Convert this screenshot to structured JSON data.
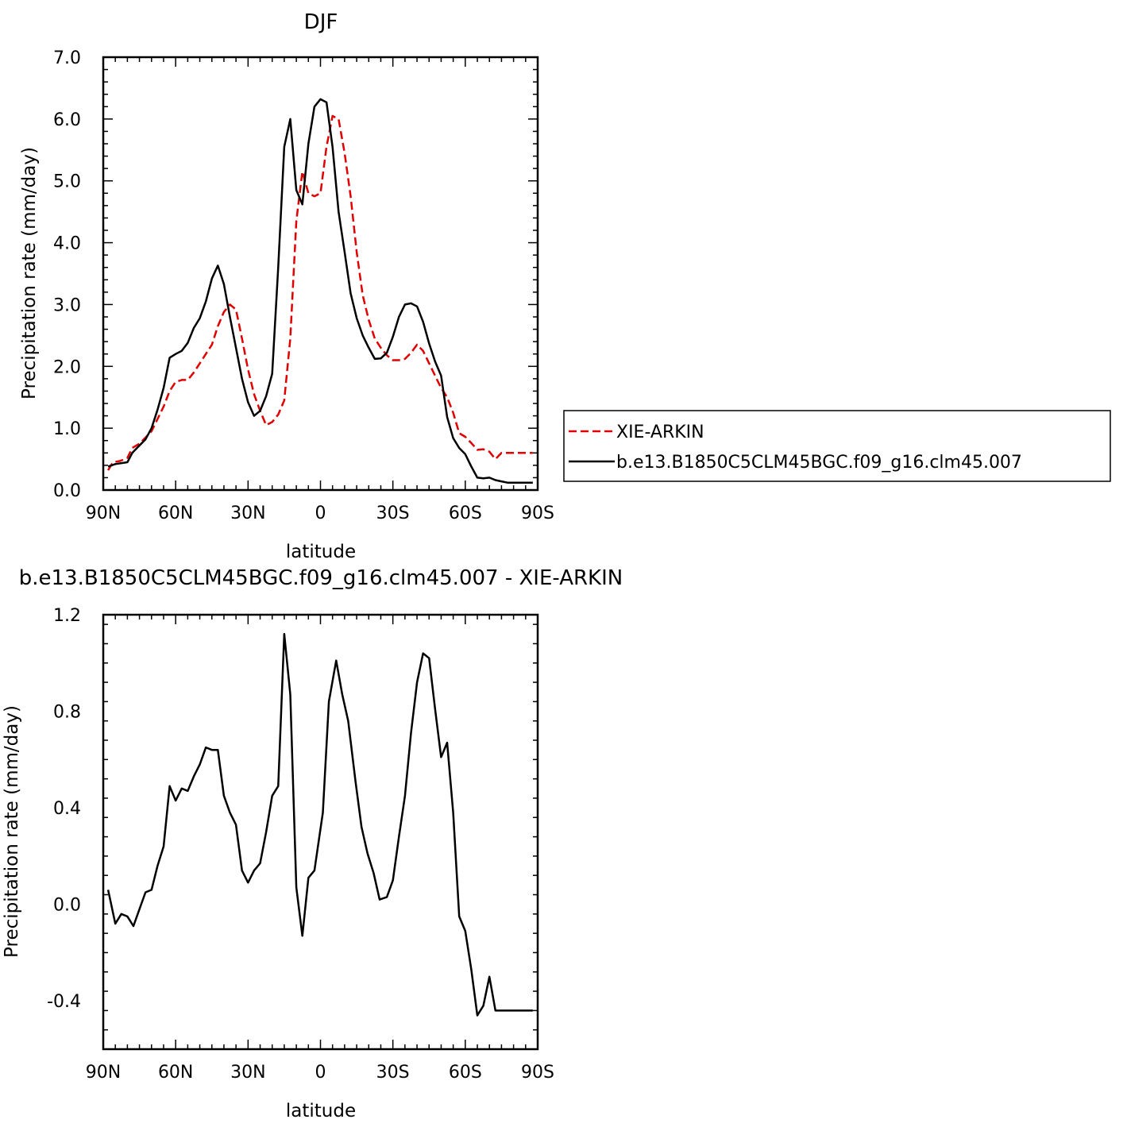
{
  "chart_data": [
    {
      "type": "line",
      "title": "DJF",
      "xlabel": "latitude",
      "ylabel": "Precipitation rate (mm/day)",
      "xlim": [
        -90,
        90
      ],
      "ylim": [
        0,
        7
      ],
      "x_direction": "north-to-south (90N on left, 90S on right)",
      "x_ticks": [
        -90,
        -60,
        -30,
        0,
        30,
        60,
        90
      ],
      "x_tick_labels": [
        "90N",
        "60N",
        "30N",
        "0",
        "30S",
        "60S",
        "90S"
      ],
      "y_ticks": [
        0,
        1,
        2,
        3,
        4,
        5,
        6,
        7
      ],
      "y_tick_labels": [
        "0.0",
        "1.0",
        "2.0",
        "3.0",
        "4.0",
        "5.0",
        "6.0",
        "7.0"
      ],
      "grid": false,
      "legend_position": "right, outside the plot",
      "series": [
        {
          "name": "XIE-ARKIN",
          "color": "#e00000",
          "dash": "dashed",
          "x": [
            -88,
            -86,
            -83,
            -80,
            -78,
            -75,
            -73,
            -70,
            -67.5,
            -65,
            -62.5,
            -60,
            -57.5,
            -55,
            -52.5,
            -50,
            -47.5,
            -45,
            -42.5,
            -40,
            -37.5,
            -35,
            -32.5,
            -30,
            -27.5,
            -25,
            -22.5,
            -20,
            -17.5,
            -15,
            -12.5,
            -10,
            -7.5,
            -5,
            -2.5,
            0,
            2.5,
            5,
            7.5,
            10,
            12.5,
            15,
            17.5,
            20,
            22.5,
            25,
            27.5,
            30,
            32.5,
            35,
            37.5,
            40,
            42.5,
            45,
            47.5,
            50,
            52.5,
            55,
            57.5,
            60,
            62.5,
            65,
            67.5,
            70,
            72.5,
            75,
            77.5,
            80,
            82.5,
            85,
            87.5,
            88
          ],
          "y": [
            0.32,
            0.45,
            0.47,
            0.52,
            0.68,
            0.75,
            0.83,
            0.95,
            1.15,
            1.35,
            1.6,
            1.75,
            1.78,
            1.78,
            1.9,
            2.05,
            2.2,
            2.35,
            2.65,
            2.88,
            3.0,
            2.92,
            2.45,
            1.95,
            1.55,
            1.28,
            1.05,
            1.1,
            1.22,
            1.45,
            2.45,
            4.35,
            5.15,
            4.8,
            4.75,
            4.8,
            5.55,
            6.05,
            6.0,
            5.45,
            4.75,
            3.85,
            3.15,
            2.75,
            2.45,
            2.3,
            2.18,
            2.1,
            2.1,
            2.12,
            2.22,
            2.35,
            2.25,
            2.05,
            1.85,
            1.65,
            1.5,
            1.25,
            0.92,
            0.86,
            0.76,
            0.65,
            0.66,
            0.62,
            0.5,
            0.6,
            0.6,
            0.6,
            0.6,
            0.6,
            0.6,
            0.6
          ]
        },
        {
          "name": "b.e13.B1850C5CLM45BGC.f09_g16.clm45.007",
          "color": "#000000",
          "dash": "solid",
          "x": [
            -88,
            -85,
            -80,
            -78,
            -75,
            -72.5,
            -70,
            -67.5,
            -65,
            -62.5,
            -60,
            -57.5,
            -55,
            -52.5,
            -50,
            -47.5,
            -45,
            -42.5,
            -40,
            -37.5,
            -35,
            -32.5,
            -30,
            -27.5,
            -25,
            -22.5,
            -20,
            -17.5,
            -15,
            -12.5,
            -10,
            -7.5,
            -5,
            -2.5,
            0,
            2.5,
            5,
            7.5,
            10,
            12.5,
            15,
            17.5,
            20,
            22.5,
            25,
            27.5,
            30,
            32.5,
            35,
            37.5,
            40,
            42.5,
            45,
            47.5,
            50,
            52.5,
            55,
            57.5,
            60,
            62.5,
            65,
            67.5,
            70,
            72.5,
            75,
            77.5,
            80,
            82.5,
            85,
            87.5,
            88
          ],
          "y": [
            0.38,
            0.42,
            0.45,
            0.6,
            0.72,
            0.82,
            1.0,
            1.3,
            1.65,
            2.14,
            2.2,
            2.25,
            2.38,
            2.62,
            2.78,
            3.05,
            3.42,
            3.63,
            3.33,
            2.8,
            2.3,
            1.8,
            1.42,
            1.2,
            1.28,
            1.52,
            1.88,
            3.6,
            5.55,
            6.0,
            4.85,
            4.62,
            5.6,
            6.2,
            6.32,
            6.27,
            5.55,
            4.5,
            3.85,
            3.18,
            2.78,
            2.5,
            2.3,
            2.12,
            2.13,
            2.22,
            2.48,
            2.8,
            3.0,
            3.02,
            2.97,
            2.72,
            2.37,
            2.08,
            1.85,
            1.18,
            0.84,
            0.68,
            0.58,
            0.38,
            0.2,
            0.19,
            0.2,
            0.16,
            0.14,
            0.12,
            0.12,
            0.12,
            0.12,
            0.12,
            0.12
          ]
        }
      ]
    },
    {
      "type": "line",
      "title": "b.e13.B1850C5CLM45BGC.f09_g16.clm45.007 - XIE-ARKIN",
      "xlabel": "latitude",
      "ylabel": "Precipitation rate (mm/day)",
      "xlim": [
        -90,
        90
      ],
      "ylim": [
        -0.6,
        1.2
      ],
      "x_direction": "north-to-south (90N on left, 90S on right)",
      "x_ticks": [
        -90,
        -60,
        -30,
        0,
        30,
        60,
        90
      ],
      "x_tick_labels": [
        "90N",
        "60N",
        "30N",
        "0",
        "30S",
        "60S",
        "90S"
      ],
      "y_ticks": [
        -0.4,
        0.0,
        0.4,
        0.8,
        1.2
      ],
      "y_tick_labels": [
        "-0.4",
        "0.0",
        "0.4",
        "0.8",
        "1.2"
      ],
      "grid": false,
      "series": [
        {
          "color": "#000000",
          "dash": "solid",
          "x": [
            -88,
            -85,
            -82.5,
            -80,
            -77.5,
            -75,
            -72.5,
            -70,
            -67.5,
            -65,
            -62.5,
            -60,
            -57.5,
            -55,
            -52.5,
            -50,
            -47.5,
            -45,
            -42.5,
            -40,
            -37.5,
            -35,
            -32.5,
            -30,
            -27.5,
            -25,
            -22.5,
            -20,
            -17.5,
            -15,
            -12.5,
            -10,
            -7.5,
            -5,
            -2.5,
            1,
            3.5,
            6.5,
            9,
            11.5,
            14.5,
            17,
            19.5,
            22,
            24.5,
            27.5,
            30,
            32.5,
            35,
            37.5,
            40,
            42.5,
            45,
            47.5,
            50,
            52.5,
            55,
            57.5,
            60,
            62.5,
            65,
            67.5,
            70,
            72.5,
            75,
            77.5,
            80,
            82.5,
            85,
            88
          ],
          "y": [
            0.06,
            -0.08,
            -0.04,
            -0.05,
            -0.09,
            -0.02,
            0.05,
            0.06,
            0.16,
            0.24,
            0.49,
            0.43,
            0.48,
            0.47,
            0.53,
            0.58,
            0.65,
            0.64,
            0.64,
            0.45,
            0.38,
            0.33,
            0.14,
            0.09,
            0.14,
            0.17,
            0.3,
            0.45,
            0.49,
            1.12,
            0.87,
            0.07,
            -0.13,
            0.11,
            0.14,
            0.38,
            0.84,
            1.01,
            0.87,
            0.76,
            0.51,
            0.32,
            0.21,
            0.13,
            0.02,
            0.03,
            0.1,
            0.28,
            0.45,
            0.71,
            0.92,
            1.04,
            1.02,
            0.81,
            0.61,
            0.67,
            0.38,
            -0.05,
            -0.11,
            -0.27,
            -0.46,
            -0.42,
            -0.3,
            -0.44,
            -0.44,
            -0.44,
            -0.44,
            -0.44,
            -0.44,
            -0.44
          ]
        }
      ]
    }
  ]
}
